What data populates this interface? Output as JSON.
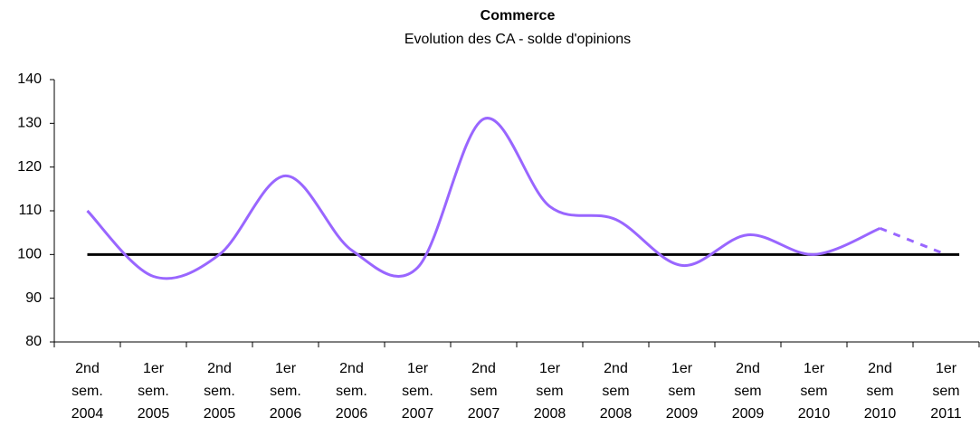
{
  "chart_data": {
    "type": "line",
    "title": "Commerce",
    "subtitle": "Evolution des CA - solde d'opinions",
    "categories": [
      [
        "2nd",
        "sem.",
        "2004"
      ],
      [
        "1er",
        "sem.",
        "2005"
      ],
      [
        "2nd",
        "sem.",
        "2005"
      ],
      [
        "1er",
        "sem.",
        "2006"
      ],
      [
        "2nd",
        "sem.",
        "2006"
      ],
      [
        "1er",
        "sem.",
        "2007"
      ],
      [
        "2nd",
        "sem",
        "2007"
      ],
      [
        "1er",
        "sem",
        "2008"
      ],
      [
        "2nd",
        "sem",
        "2008"
      ],
      [
        "1er",
        "sem",
        "2009"
      ],
      [
        "2nd",
        "sem",
        "2009"
      ],
      [
        "1er",
        "sem",
        "2010"
      ],
      [
        "2nd",
        "sem",
        "2010"
      ],
      [
        "1er",
        "sem",
        "2011"
      ]
    ],
    "series": [
      {
        "color": "#9966ff",
        "values": [
          110,
          95,
          100,
          118,
          101,
          97,
          131,
          111,
          108,
          97.5,
          104.5,
          100,
          106,
          null
        ]
      },
      {
        "color": "#9966ff",
        "dashed": true,
        "values": [
          null,
          null,
          null,
          null,
          null,
          null,
          null,
          null,
          null,
          null,
          null,
          null,
          106,
          100
        ]
      }
    ],
    "reference_line": 100,
    "ylim": [
      80,
      140
    ],
    "yticks": [
      80,
      90,
      100,
      110,
      120,
      130,
      140
    ],
    "smooth": true
  }
}
